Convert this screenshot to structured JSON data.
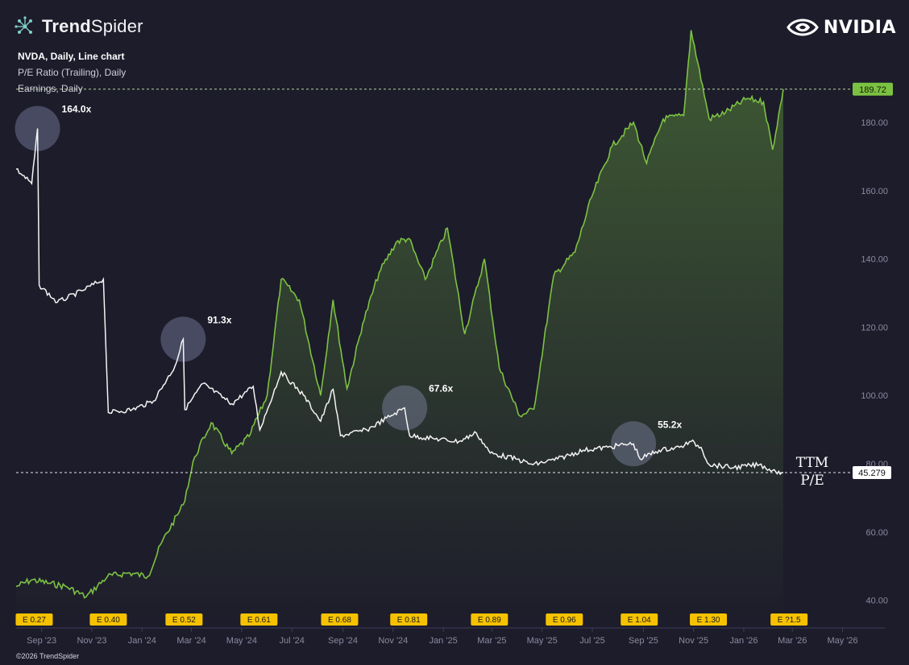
{
  "brand": {
    "name_bold": "Trend",
    "name_regular": "Spider"
  },
  "company": {
    "name": "NVIDIA"
  },
  "legend": {
    "line1": "NVDA, Daily, Line chart",
    "line2": "P/E Ratio (Trailing), Daily",
    "line3": "Earnings, Daily"
  },
  "footer": {
    "copyright": "©2026 TrendSpider"
  },
  "colors": {
    "background": "#1d1c2b",
    "price_line": "#7cc242",
    "pe_line": "#f4f4f4",
    "earnings_badge": "#f6c200",
    "price_tag": "#7cc242"
  },
  "chart_data": {
    "type": "line",
    "y_axis": {
      "ticks": [
        "180.00",
        "160.00",
        "140.00",
        "120.00",
        "100.00",
        "80.00",
        "60.00",
        "40.00"
      ],
      "range": [
        40,
        190
      ]
    },
    "x_axis": {
      "ticks": [
        "Sep '23",
        "Nov '23",
        "Jan '24",
        "Mar '24",
        "May '24",
        "Jul '24",
        "Sep '24",
        "Nov '24",
        "Jan '25",
        "Mar '25",
        "May '25",
        "Jul '25",
        "Sep '25",
        "Nov '25",
        "Jan '26",
        "Mar '26",
        "May '26"
      ]
    },
    "price_series": {
      "current_value": "189.72",
      "points": [
        [
          "2023-08-01",
          44
        ],
        [
          "2023-08-20",
          46
        ],
        [
          "2023-09-10",
          45
        ],
        [
          "2023-10-01",
          44
        ],
        [
          "2023-10-25",
          41
        ],
        [
          "2023-11-20",
          47
        ],
        [
          "2023-12-15",
          48
        ],
        [
          "2024-01-08",
          47
        ],
        [
          "2024-01-25",
          57
        ],
        [
          "2024-02-20",
          68
        ],
        [
          "2024-03-05",
          82
        ],
        [
          "2024-03-25",
          92
        ],
        [
          "2024-04-19",
          83
        ],
        [
          "2024-05-10",
          88
        ],
        [
          "2024-06-01",
          100
        ],
        [
          "2024-06-18",
          134
        ],
        [
          "2024-07-10",
          128
        ],
        [
          "2024-08-05",
          100
        ],
        [
          "2024-08-20",
          128
        ],
        [
          "2024-09-06",
          102
        ],
        [
          "2024-09-25",
          121
        ],
        [
          "2024-10-15",
          136
        ],
        [
          "2024-11-05",
          145
        ],
        [
          "2024-11-20",
          146
        ],
        [
          "2024-12-10",
          134
        ],
        [
          "2025-01-06",
          149
        ],
        [
          "2025-01-27",
          118
        ],
        [
          "2025-02-20",
          140
        ],
        [
          "2025-03-10",
          108
        ],
        [
          "2025-04-04",
          94
        ],
        [
          "2025-04-21",
          96
        ],
        [
          "2025-05-15",
          135
        ],
        [
          "2025-06-10",
          142
        ],
        [
          "2025-06-30",
          158
        ],
        [
          "2025-07-25",
          173
        ],
        [
          "2025-08-20",
          180
        ],
        [
          "2025-09-05",
          168
        ],
        [
          "2025-09-25",
          181
        ],
        [
          "2025-10-20",
          182
        ],
        [
          "2025-10-29",
          207
        ],
        [
          "2025-11-20",
          181
        ],
        [
          "2025-12-10",
          183
        ],
        [
          "2026-01-05",
          187
        ],
        [
          "2026-01-25",
          186
        ],
        [
          "2026-02-05",
          172
        ],
        [
          "2026-02-18",
          189.72
        ]
      ]
    },
    "pe_series": {
      "current_value": "45.279",
      "points": [
        [
          "2023-08-01",
          150
        ],
        [
          "2023-08-20",
          145
        ],
        [
          "2023-08-27",
          164
        ],
        [
          "2023-08-29",
          110
        ],
        [
          "2023-09-20",
          104
        ],
        [
          "2023-10-20",
          108
        ],
        [
          "2023-11-15",
          112
        ],
        [
          "2023-11-21",
          66
        ],
        [
          "2023-12-20",
          67
        ],
        [
          "2024-01-15",
          70
        ],
        [
          "2024-02-10",
          82
        ],
        [
          "2024-02-20",
          91.3
        ],
        [
          "2024-02-22",
          67
        ],
        [
          "2024-03-15",
          76
        ],
        [
          "2024-04-19",
          69
        ],
        [
          "2024-05-15",
          75
        ],
        [
          "2024-05-23",
          60
        ],
        [
          "2024-06-18",
          80
        ],
        [
          "2024-07-15",
          72
        ],
        [
          "2024-08-05",
          63
        ],
        [
          "2024-08-20",
          74
        ],
        [
          "2024-08-29",
          58
        ],
        [
          "2024-09-30",
          60
        ],
        [
          "2024-10-30",
          65
        ],
        [
          "2024-11-15",
          67.6
        ],
        [
          "2024-11-21",
          58
        ],
        [
          "2024-12-20",
          57
        ],
        [
          "2025-01-20",
          56
        ],
        [
          "2025-02-10",
          59
        ],
        [
          "2025-02-27",
          52
        ],
        [
          "2025-03-30",
          50
        ],
        [
          "2025-04-20",
          48
        ],
        [
          "2025-05-20",
          50
        ],
        [
          "2025-06-20",
          53
        ],
        [
          "2025-07-20",
          54
        ],
        [
          "2025-08-10",
          55
        ],
        [
          "2025-08-20",
          55.2
        ],
        [
          "2025-08-28",
          50
        ],
        [
          "2025-09-20",
          53
        ],
        [
          "2025-10-15",
          54
        ],
        [
          "2025-10-29",
          56
        ],
        [
          "2025-11-10",
          54
        ],
        [
          "2025-11-20",
          48
        ],
        [
          "2025-12-20",
          47
        ],
        [
          "2026-01-20",
          48
        ],
        [
          "2026-02-05",
          46
        ],
        [
          "2026-02-18",
          45.279
        ]
      ]
    },
    "annotations": [
      {
        "label": "164.0x",
        "date": "2023-08-27",
        "pe": 164
      },
      {
        "label": "91.3x",
        "date": "2024-02-20",
        "pe": 91.3
      },
      {
        "label": "67.6x",
        "date": "2024-11-15",
        "pe": 67.6
      },
      {
        "label": "55.2x",
        "date": "2025-08-20",
        "pe": 55.2
      }
    ],
    "earnings": [
      {
        "label": "E 0.27",
        "date": "2023-08-23"
      },
      {
        "label": "E 0.40",
        "date": "2023-11-21"
      },
      {
        "label": "E 0.52",
        "date": "2024-02-21"
      },
      {
        "label": "E 0.61",
        "date": "2024-05-22"
      },
      {
        "label": "E 0.68",
        "date": "2024-08-28"
      },
      {
        "label": "E 0.81",
        "date": "2024-11-20"
      },
      {
        "label": "E 0.89",
        "date": "2025-02-26"
      },
      {
        "label": "E 0.96",
        "date": "2025-05-28"
      },
      {
        "label": "E 1.04",
        "date": "2025-08-27"
      },
      {
        "label": "E 1.30",
        "date": "2025-11-19"
      },
      {
        "label": "E ?1.5",
        "date": "2026-02-25"
      }
    ],
    "ttm_label_line1": "TTM",
    "ttm_label_line2": "P/E"
  }
}
